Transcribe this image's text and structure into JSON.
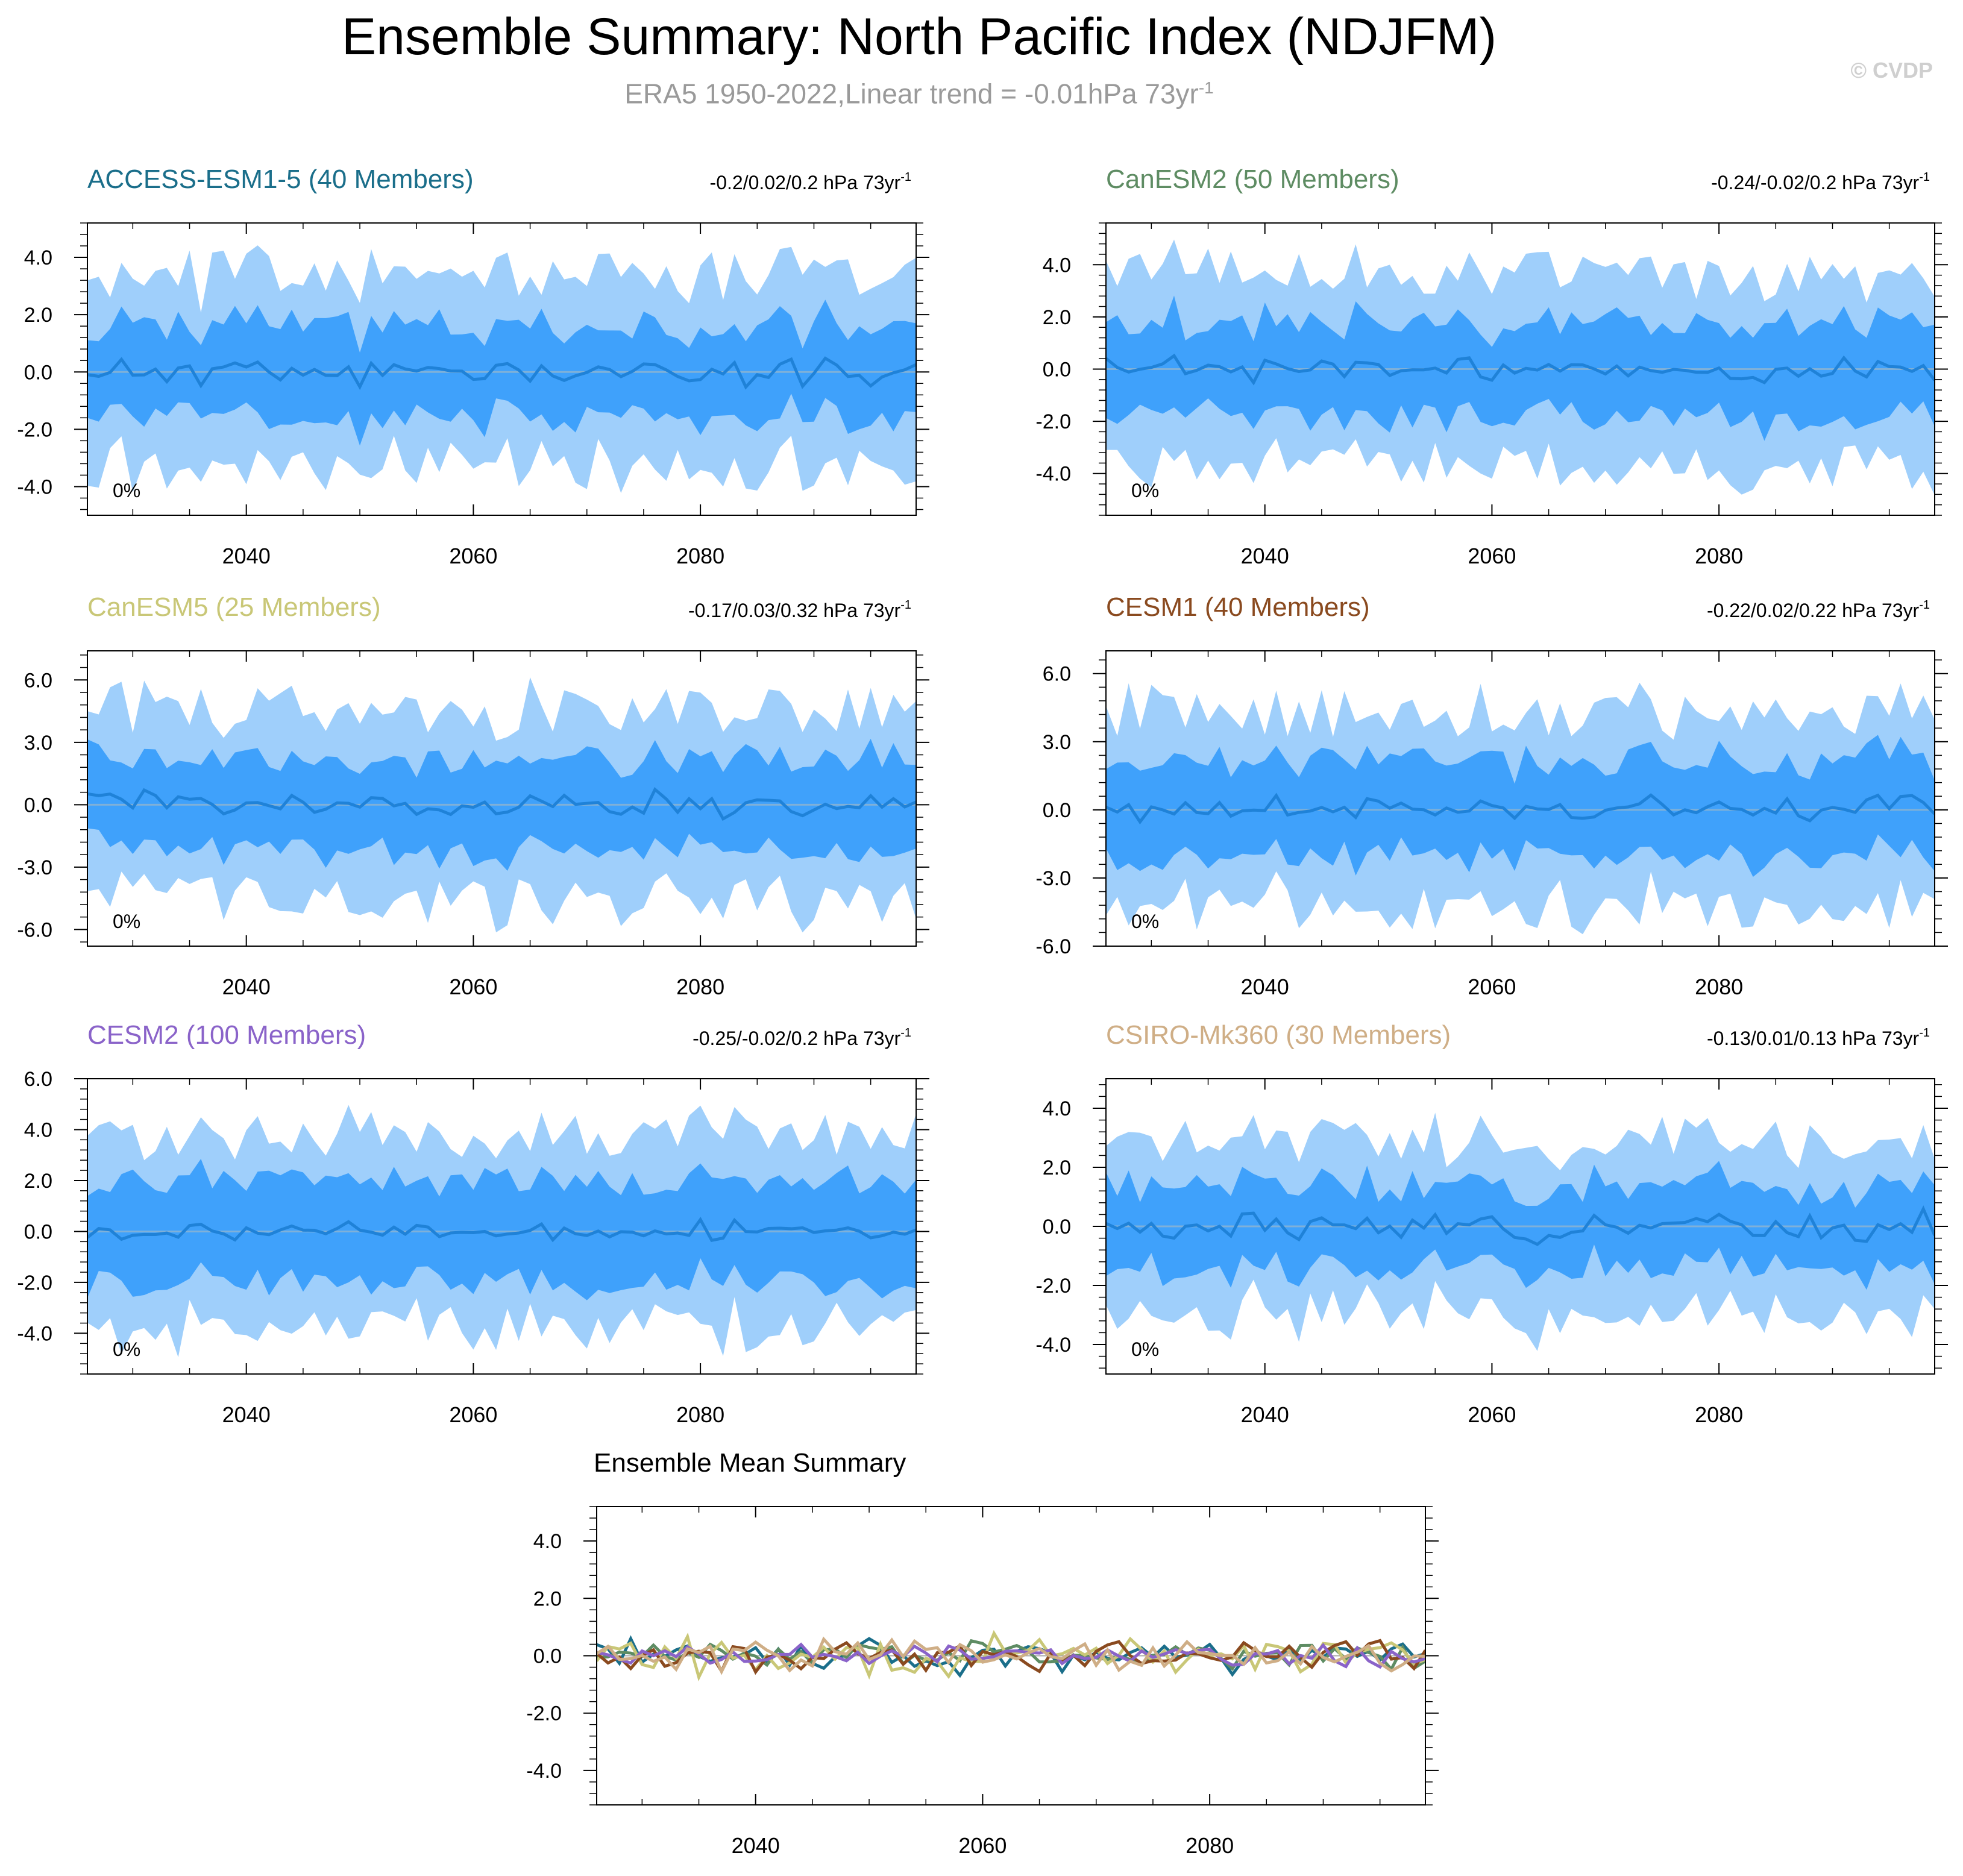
{
  "title": "Ensemble Summary: North Pacific Index (NDJFM)",
  "subtitle": {
    "text": "ERA5 1950-2022,Linear trend = -0.01hPa 73yr",
    "superscript": "-1"
  },
  "copyright": "© CVDP",
  "colors": {
    "outer_band": "#9fcffb",
    "inner_band": "#3fa1fb",
    "mean_line": "#1f82d8",
    "zero_line": "#7fb0d8"
  },
  "chart_data": [
    {
      "type": "area",
      "model": "ACCESS-ESM1-5 (40 Members)",
      "label_color": "#1a6e8a",
      "trend_label": "-0.2/0.02/0.2 hPa 73yr",
      "trend_sup": "-1",
      "percent_label": "0%",
      "xlim": [
        2026,
        2099
      ],
      "x_ticks": [
        2040,
        2060,
        2080
      ],
      "ylim": [
        -5.0,
        5.2
      ],
      "y_ticks": [
        -4.0,
        -2.0,
        0.0,
        2.0,
        4.0
      ],
      "y_tick_labels": [
        "-4.0",
        "-2.0",
        "0.0",
        "2.0",
        "4.0"
      ],
      "outer_range": 3.3,
      "inner_range": 1.6,
      "seed": 11,
      "mean_amp": 0.45
    },
    {
      "type": "area",
      "model": "CanESM2 (50 Members)",
      "label_color": "#5e8c63",
      "trend_label": "-0.24/-0.02/0.2 hPa 73yr",
      "trend_sup": "-1",
      "percent_label": "0%",
      "xlim": [
        2026,
        2099
      ],
      "x_ticks": [
        2040,
        2060,
        2080
      ],
      "ylim": [
        -5.6,
        5.6
      ],
      "y_ticks": [
        -4.0,
        -2.0,
        0.0,
        2.0,
        4.0
      ],
      "y_tick_labels": [
        "-4.0",
        "-2.0",
        "0.0",
        "2.0",
        "4.0"
      ],
      "outer_range": 3.7,
      "inner_range": 1.8,
      "seed": 23,
      "mean_amp": 0.4
    },
    {
      "type": "area",
      "model": "CanESM5 (25 Members)",
      "label_color": "#c9c777",
      "trend_label": "-0.17/0.03/0.32 hPa 73yr",
      "trend_sup": "-1",
      "percent_label": "0%",
      "xlim": [
        2026,
        2099
      ],
      "x_ticks": [
        2040,
        2060,
        2080
      ],
      "ylim": [
        -6.8,
        7.4
      ],
      "y_ticks": [
        -6.0,
        -3.0,
        0.0,
        3.0,
        6.0
      ],
      "y_tick_labels": [
        "-6.0",
        "-3.0",
        "0.0",
        "3.0",
        "6.0"
      ],
      "outer_range": 4.6,
      "inner_range": 2.2,
      "seed": 37,
      "mean_amp": 0.6
    },
    {
      "type": "area",
      "model": "CESM1 (40 Members)",
      "label_color": "#8a4a1f",
      "trend_label": "-0.22/0.02/0.22 hPa 73yr",
      "trend_sup": "-1",
      "percent_label": "0%",
      "xlim": [
        2026,
        2099
      ],
      "x_ticks": [
        2040,
        2060,
        2080
      ],
      "ylim": [
        -6.0,
        7.0
      ],
      "y_ticks": [
        -6.0,
        -3.0,
        0.0,
        3.0,
        6.0
      ],
      "y_tick_labels": [
        "-6.0",
        "-3.0",
        "0.0",
        "3.0",
        "6.0"
      ],
      "outer_range": 4.3,
      "inner_range": 2.1,
      "seed": 41,
      "mean_amp": 0.55
    },
    {
      "type": "area",
      "model": "CESM2 (100 Members)",
      "label_color": "#8a63c9",
      "trend_label": "-0.25/-0.02/0.2 hPa 73yr",
      "trend_sup": "-1",
      "percent_label": "0%",
      "xlim": [
        2026,
        2099
      ],
      "x_ticks": [
        2040,
        2060,
        2080
      ],
      "ylim": [
        -5.6,
        6.0
      ],
      "y_ticks": [
        -4.0,
        -2.0,
        0.0,
        2.0,
        4.0,
        6.0
      ],
      "y_tick_labels": [
        "-4.0",
        "-2.0",
        "0.0",
        "2.0",
        "4.0",
        "6.0"
      ],
      "outer_range": 3.8,
      "inner_range": 2.0,
      "seed": 53,
      "mean_amp": 0.35
    },
    {
      "type": "area",
      "model": "CSIRO-Mk360 (30 Members)",
      "label_color": "#cfae86",
      "trend_label": "-0.13/0.01/0.13 hPa 73yr",
      "trend_sup": "-1",
      "percent_label": "0%",
      "xlim": [
        2026,
        2099
      ],
      "x_ticks": [
        2040,
        2060,
        2080
      ],
      "ylim": [
        -5.0,
        5.0
      ],
      "y_ticks": [
        -4.0,
        -2.0,
        0.0,
        2.0,
        4.0
      ],
      "y_tick_labels": [
        "-4.0",
        "-2.0",
        "0.0",
        "2.0",
        "4.0"
      ],
      "outer_range": 2.9,
      "inner_range": 1.4,
      "seed": 67,
      "mean_amp": 0.45
    },
    {
      "type": "line",
      "title": "Ensemble Mean Summary",
      "xlim": [
        2026,
        2099
      ],
      "x_ticks": [
        2040,
        2060,
        2080
      ],
      "ylim": [
        -5.2,
        5.2
      ],
      "y_ticks": [
        -4.0,
        -2.0,
        0.0,
        2.0,
        4.0
      ],
      "y_tick_labels": [
        "-4.0",
        "-2.0",
        "0.0",
        "2.0",
        "4.0"
      ],
      "series": [
        {
          "name": "ACCESS-ESM1-5",
          "color": "#1a6e8a",
          "seed": 11,
          "amp": 0.45
        },
        {
          "name": "CanESM2",
          "color": "#5e8c63",
          "seed": 23,
          "amp": 0.4
        },
        {
          "name": "CanESM5",
          "color": "#c9c777",
          "seed": 37,
          "amp": 0.6
        },
        {
          "name": "CESM1",
          "color": "#8a4a1f",
          "seed": 41,
          "amp": 0.55
        },
        {
          "name": "CESM2",
          "color": "#8a63c9",
          "seed": 53,
          "amp": 0.35
        },
        {
          "name": "CSIRO-Mk360",
          "color": "#cfae86",
          "seed": 67,
          "amp": 0.45
        }
      ]
    }
  ]
}
